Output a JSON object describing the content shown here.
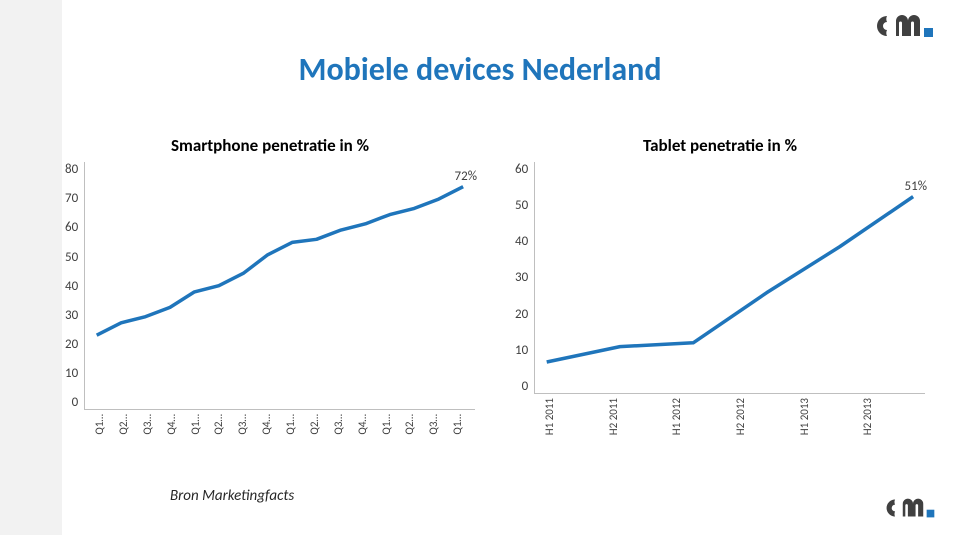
{
  "title": {
    "text": "Mobiele devices Nederland",
    "color": "#1f75bb",
    "fontsize": 32
  },
  "source": {
    "text": "Bron Marketingfacts"
  },
  "line_color": "#1f75bb",
  "line_width": 3.5,
  "axis_color": "#bfbfbf",
  "tick_color": "#404040",
  "background_color": "#ffffff",
  "stripe_color": "#f2f2f2",
  "logo": {
    "cm_color": "#404040",
    "dot_color": "#1f75bb"
  },
  "chart1": {
    "type": "line",
    "title": "Smartphone penetratie in %",
    "title_fontsize": 17,
    "ylabels": [
      "80",
      "70",
      "60",
      "50",
      "40",
      "30",
      "20",
      "10",
      "0"
    ],
    "ylim": [
      0,
      80
    ],
    "xlabels": [
      "Q1…",
      "Q2…",
      "Q3…",
      "Q4…",
      "Q1…",
      "Q2…",
      "Q3…",
      "Q4…",
      "Q1…",
      "Q2…",
      "Q3…",
      "Q4…",
      "Q1…",
      "Q2…",
      "Q3…",
      "Q1…"
    ],
    "values": [
      24,
      28,
      30,
      33,
      38,
      40,
      44,
      50,
      54,
      55,
      58,
      60,
      63,
      65,
      68,
      72
    ],
    "end_label": "72%"
  },
  "chart2": {
    "type": "line",
    "title": "Tablet penetratie in %",
    "title_fontsize": 17,
    "ylabels": [
      "60",
      "50",
      "40",
      "30",
      "20",
      "10",
      "0"
    ],
    "ylim": [
      0,
      60
    ],
    "xlabels": [
      "H1 2011",
      "H2 2011",
      "H1 2012",
      "H2 2012",
      "H1 2013",
      "H2 2013"
    ],
    "values": [
      8,
      12,
      13,
      26,
      38,
      51
    ],
    "end_label": "51%"
  }
}
